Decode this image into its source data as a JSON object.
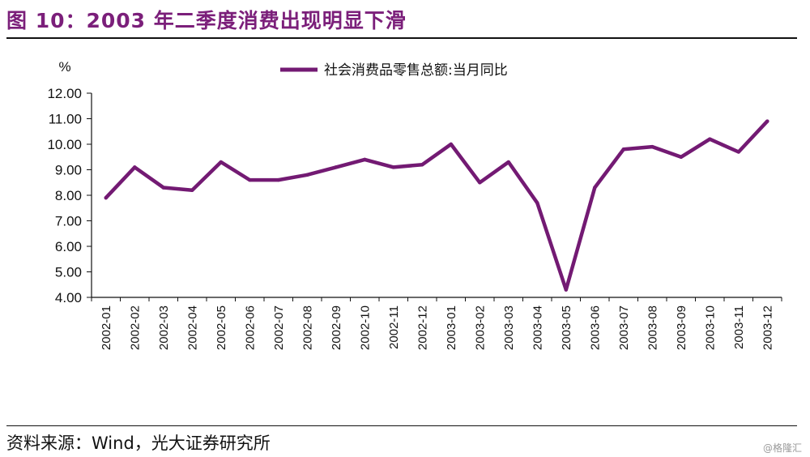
{
  "header": {
    "title": "图 10：2003 年二季度消费出现明显下滑"
  },
  "footer": {
    "source": "资料来源：Wind，光大证券研究所",
    "watermark": "@格隆汇"
  },
  "colors": {
    "title": "#7b1f7a",
    "line": "#731a73",
    "axis": "#111111"
  },
  "chart_data": {
    "type": "line",
    "title": "",
    "ylabel": "%",
    "xlabel": "",
    "ylim": [
      4.0,
      12.0
    ],
    "yticks": [
      "4.00",
      "5.00",
      "6.00",
      "7.00",
      "8.00",
      "9.00",
      "10.00",
      "11.00",
      "12.00"
    ],
    "categories": [
      "2002-01",
      "2002-02",
      "2002-03",
      "2002-04",
      "2002-05",
      "2002-06",
      "2002-07",
      "2002-08",
      "2002-09",
      "2002-10",
      "2002-11",
      "2002-12",
      "2003-01",
      "2003-02",
      "2003-03",
      "2003-04",
      "2003-05",
      "2003-06",
      "2003-07",
      "2003-08",
      "2003-09",
      "2003-10",
      "2003-11",
      "2003-12"
    ],
    "series": [
      {
        "name": "社会消费品零售总额:当月同比",
        "values": [
          7.9,
          9.1,
          8.3,
          8.2,
          9.3,
          8.6,
          8.6,
          8.8,
          9.1,
          9.4,
          9.1,
          9.2,
          10.0,
          8.5,
          9.3,
          7.7,
          4.3,
          8.3,
          9.8,
          9.9,
          9.5,
          10.2,
          9.7,
          10.9
        ]
      }
    ],
    "legend": "top-center"
  }
}
